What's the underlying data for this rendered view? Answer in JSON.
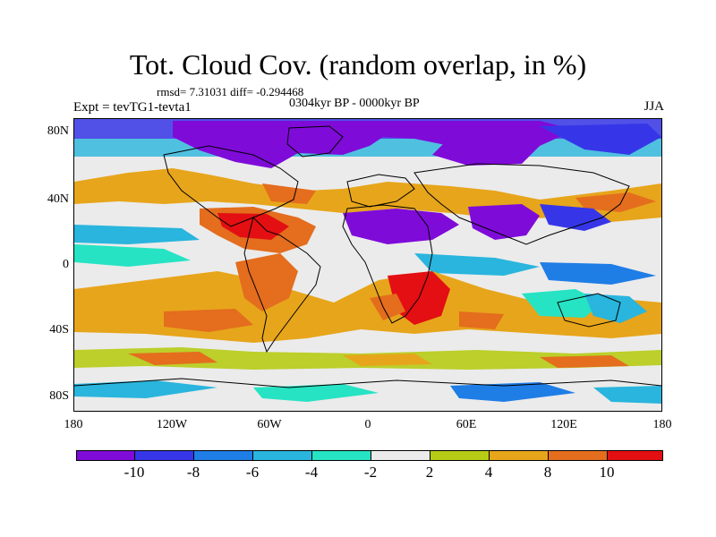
{
  "title": "Tot. Cloud Cov. (random overlap, in %)",
  "stats": "rmsd= 7.31031 diff= -0.294468",
  "period": "0304kyr BP - 0000kyr BP",
  "experiment": "Expt = tevTG1-tevta1",
  "season": "JJA",
  "lat_labels": [
    "80N",
    "40N",
    "0",
    "40S",
    "80S"
  ],
  "lon_labels": [
    "180",
    "120W",
    "60W",
    "0",
    "60E",
    "120E",
    "180"
  ],
  "colorbar": {
    "colors": [
      "#7f0bd9",
      "#3636e8",
      "#1f7de6",
      "#29b5dd",
      "#26e3c3",
      "#ebebeb",
      "#b7cc15",
      "#e7a51b",
      "#e46d1e",
      "#e30f12"
    ],
    "labels": [
      "-10",
      "-8",
      "-6",
      "-4",
      "-2",
      "2",
      "4",
      "8",
      "10"
    ]
  }
}
